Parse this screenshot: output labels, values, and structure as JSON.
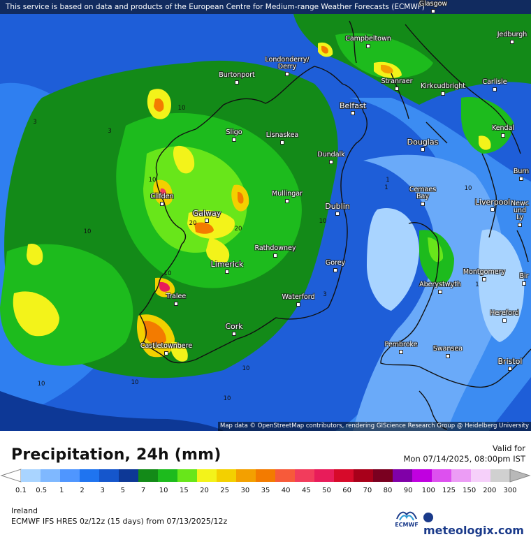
{
  "banner": "This service is based on data and products of the European Centre for Medium-range Weather Forecasts (ECMWF)",
  "attribution": "Map data © OpenStreetMap contributors, rendering GIScience Research Group @ Heidelberg University",
  "cities": [
    {
      "name": "Glasgow"
    },
    {
      "name": "Campbeltown"
    },
    {
      "name": "Jedburgh"
    },
    {
      "name": "Burtonport"
    },
    {
      "name": "Londonderry/\nDerry"
    },
    {
      "name": "Stranraer"
    },
    {
      "name": "Kirkcudbright"
    },
    {
      "name": "Carlisle"
    },
    {
      "name": "Belfast"
    },
    {
      "name": "Sligo"
    },
    {
      "name": "Lisnaskea"
    },
    {
      "name": "Kendal"
    },
    {
      "name": "Douglas"
    },
    {
      "name": "Dundalk"
    },
    {
      "name": "Burn"
    },
    {
      "name": "Clifden"
    },
    {
      "name": "Mullingar"
    },
    {
      "name": "Cemaes\nBay"
    },
    {
      "name": "Liverpool"
    },
    {
      "name": "Dublin"
    },
    {
      "name": "Galway"
    },
    {
      "name": "Newc\nund\nLy"
    },
    {
      "name": "Rathdowney"
    },
    {
      "name": "Limerick"
    },
    {
      "name": "Gorey"
    },
    {
      "name": "Montgomery"
    },
    {
      "name": "Bir"
    },
    {
      "name": "Tralee"
    },
    {
      "name": "Aberystwyth"
    },
    {
      "name": "Waterford"
    },
    {
      "name": "Hereford"
    },
    {
      "name": "Cork"
    },
    {
      "name": "Pembroke"
    },
    {
      "name": "Swansea"
    },
    {
      "name": "Castletownbere"
    },
    {
      "name": "Bristol"
    }
  ],
  "iso_labels": [
    "10",
    "10",
    "3",
    "3",
    "10",
    "10",
    "20",
    "20",
    "10",
    "1",
    "1",
    "1",
    "10",
    "10",
    "10",
    "10",
    "10",
    "3"
  ],
  "legend": {
    "title": "Precipitation, 24h (mm)",
    "valid_label": "Valid for",
    "valid_time": "Mon 07/14/2025, 08:00pm IST",
    "ticks": [
      "0.1",
      "0.5",
      "1",
      "2",
      "3",
      "5",
      "7",
      "10",
      "15",
      "20",
      "25",
      "30",
      "35",
      "40",
      "45",
      "50",
      "60",
      "70",
      "80",
      "90",
      "100",
      "125",
      "150",
      "200",
      "300"
    ],
    "colors": [
      "#a9d4ff",
      "#7fb8ff",
      "#4f96ff",
      "#1f74f0",
      "#1556cc",
      "#0d3896",
      "#138a18",
      "#1dbb1d",
      "#68e61a",
      "#f3f31a",
      "#f3d000",
      "#f3a000",
      "#f37b00",
      "#f75a3a",
      "#f23c5c",
      "#e81c5a",
      "#d70a2a",
      "#a8001a",
      "#7a0020",
      "#8000a8",
      "#c000e0",
      "#dd50ef",
      "#ec9cf5",
      "#f6d0fa",
      "#d0d0d0"
    ]
  },
  "region": "Ireland",
  "model": "ECMWF IFS HRES 0z/12z (15 days) from  07/13/2025/12z",
  "ecmwf_logo": "ECMWF",
  "brand": "meteologix.com"
}
